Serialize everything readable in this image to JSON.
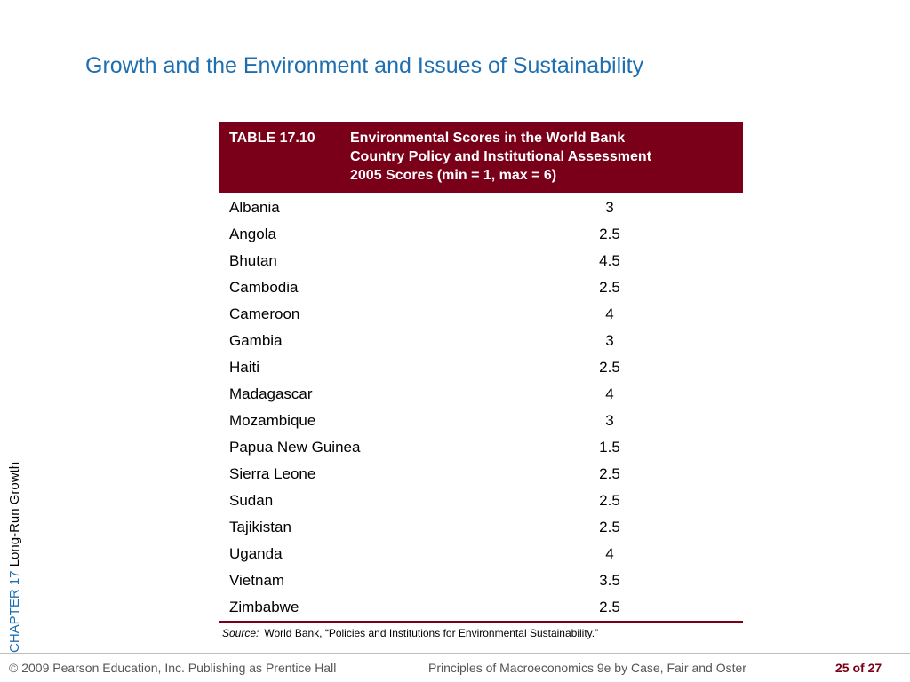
{
  "slide": {
    "title": "Growth and the Environment and Issues of Sustainability",
    "side_label_chapter": "CHAPTER 17",
    "side_label_topic": "Long-Run Growth"
  },
  "table": {
    "number": "TABLE 17.10",
    "title_lines": [
      "Environmental Scores in the World Bank",
      "Country Policy and Institutional Assessment",
      "2005 Scores (min = 1, max = 6)"
    ],
    "rows": [
      {
        "country": "Albania",
        "score": "3"
      },
      {
        "country": "Angola",
        "score": "2.5"
      },
      {
        "country": "Bhutan",
        "score": "4.5"
      },
      {
        "country": "Cambodia",
        "score": "2.5"
      },
      {
        "country": "Cameroon",
        "score": "4"
      },
      {
        "country": "Gambia",
        "score": "3"
      },
      {
        "country": "Haiti",
        "score": "2.5"
      },
      {
        "country": "Madagascar",
        "score": "4"
      },
      {
        "country": "Mozambique",
        "score": "3"
      },
      {
        "country": "Papua New Guinea",
        "score": "1.5"
      },
      {
        "country": "Sierra Leone",
        "score": "2.5"
      },
      {
        "country": "Sudan",
        "score": "2.5"
      },
      {
        "country": "Tajikistan",
        "score": "2.5"
      },
      {
        "country": "Uganda",
        "score": "4"
      },
      {
        "country": "Vietnam",
        "score": "3.5"
      },
      {
        "country": "Zimbabwe",
        "score": "2.5"
      }
    ]
  },
  "source": {
    "label": "Source:",
    "text": "World Bank, “Policies and Institutions for Environmental Sustainability.”"
  },
  "footer": {
    "copyright": "© 2009 Pearson Education, Inc. Publishing as Prentice Hall",
    "book": "Principles of Macroeconomics 9e by Case, Fair and Oster",
    "page": "25 of 27"
  },
  "colors": {
    "title_blue": "#1f6fb0",
    "table_maroon": "#7a0019"
  }
}
